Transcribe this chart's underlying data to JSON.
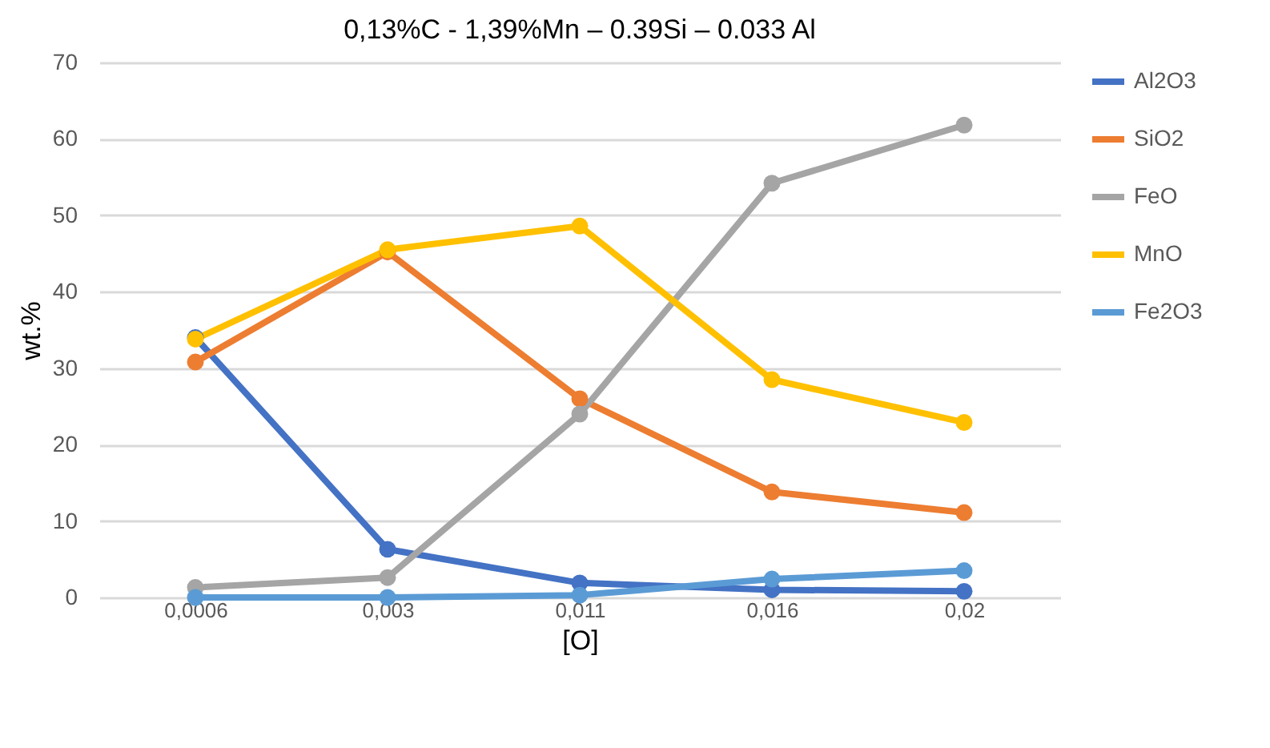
{
  "chart_data": {
    "type": "line",
    "title": "0,13%C - 1,39%Mn – 0.39Si – 0.033 Al",
    "xlabel": "[O]",
    "ylabel": "wt.%",
    "categories": [
      "0,0006",
      "0,003",
      "0,011",
      "0,016",
      "0,02"
    ],
    "series": [
      {
        "name": "Al2O3",
        "color": "#4472c4",
        "values": [
          34,
          6.3,
          1.9,
          1.0,
          0.8
        ]
      },
      {
        "name": "SiO2",
        "color": "#ed7d31",
        "values": [
          30.8,
          45.2,
          26.0,
          13.8,
          11.1
        ]
      },
      {
        "name": "FeO",
        "color": "#a5a5a5",
        "values": [
          1.3,
          2.6,
          24.0,
          54.2,
          61.8
        ]
      },
      {
        "name": "MnO",
        "color": "#ffc000",
        "values": [
          33.8,
          45.5,
          48.6,
          28.5,
          22.9
        ]
      },
      {
        "name": "Fe2O3",
        "color": "#5b9bd5",
        "values": [
          0,
          0,
          0.3,
          2.4,
          3.5
        ]
      }
    ],
    "ylim": [
      0,
      70
    ],
    "yticks": [
      0,
      10,
      20,
      30,
      40,
      50,
      60,
      70
    ],
    "grid": "y",
    "legend": "right",
    "marker": "circle",
    "line_style": "solid"
  }
}
